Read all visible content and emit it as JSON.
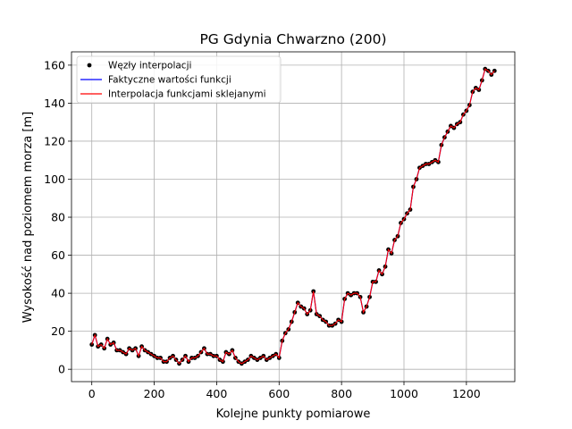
{
  "chart_data": {
    "type": "line",
    "title": "PG Gdynia Chwarzno (200)",
    "xlabel": "Kolejne punkty pomiarowe",
    "ylabel": "Wysokość nad poziomem morza [m]",
    "xlim": [
      -65,
      1355
    ],
    "ylim": [
      -6.5,
      167
    ],
    "xticks": [
      0,
      200,
      400,
      600,
      800,
      1000,
      1200
    ],
    "yticks": [
      0,
      20,
      40,
      60,
      80,
      100,
      120,
      140,
      160
    ],
    "grid": true,
    "legend_position": "top-left",
    "colors": {
      "nodes": "#000000",
      "actual": "#0000ff",
      "spline": "#ff0000",
      "grid": "#b0b0b0"
    },
    "series": [
      {
        "name": "Węzły interpolacji",
        "style": "scatter",
        "key": "nodes"
      },
      {
        "name": "Faktyczne wartości funkcji",
        "style": "line",
        "key": "actual"
      },
      {
        "name": "Interpolacja funkcjami sklejanymi",
        "style": "line",
        "key": "spline"
      }
    ],
    "x": [
      0,
      10,
      20,
      30,
      40,
      50,
      60,
      70,
      80,
      90,
      100,
      110,
      120,
      130,
      140,
      150,
      160,
      170,
      180,
      190,
      200,
      210,
      220,
      230,
      240,
      250,
      260,
      270,
      280,
      290,
      300,
      310,
      320,
      330,
      340,
      350,
      360,
      370,
      380,
      390,
      400,
      410,
      420,
      430,
      440,
      450,
      460,
      470,
      480,
      490,
      500,
      510,
      520,
      530,
      540,
      550,
      560,
      570,
      580,
      590,
      600,
      610,
      620,
      630,
      640,
      650,
      660,
      670,
      680,
      690,
      700,
      710,
      720,
      730,
      740,
      750,
      760,
      770,
      780,
      790,
      800,
      810,
      820,
      830,
      840,
      850,
      860,
      870,
      880,
      890,
      900,
      910,
      920,
      930,
      940,
      950,
      960,
      970,
      980,
      990,
      1000,
      1010,
      1020,
      1030,
      1040,
      1050,
      1060,
      1070,
      1080,
      1090,
      1100,
      1110,
      1120,
      1130,
      1140,
      1150,
      1160,
      1170,
      1180,
      1190,
      1200,
      1210,
      1220,
      1230,
      1240,
      1250,
      1260,
      1270,
      1280,
      1290
    ],
    "values": [
      13,
      18,
      12,
      13,
      11,
      16,
      13,
      14,
      10,
      10,
      9,
      8,
      11,
      10,
      11,
      7,
      12,
      10,
      9,
      8,
      7,
      6,
      6,
      4,
      4,
      6,
      7,
      5,
      3,
      5,
      7,
      4,
      6,
      6,
      7,
      9,
      11,
      8,
      8,
      7,
      7,
      5,
      4,
      9,
      8,
      10,
      6,
      4,
      3,
      4,
      5,
      7,
      6,
      5,
      6,
      7,
      5,
      6,
      7,
      8,
      6,
      15,
      19,
      21,
      25,
      30,
      35,
      33,
      32,
      29,
      31,
      41,
      29,
      28,
      26,
      25,
      23,
      23,
      24,
      26,
      25,
      37,
      40,
      39,
      40,
      40,
      38,
      30,
      33,
      38,
      46,
      46,
      52,
      50,
      54,
      63,
      61,
      68,
      70,
      77,
      79,
      82,
      84,
      96,
      100,
      106,
      107,
      108,
      108,
      109,
      110,
      109,
      118,
      122,
      125,
      128,
      127,
      129,
      130,
      134,
      136,
      139,
      146,
      148,
      147,
      152,
      158,
      157,
      155,
      157
    ]
  }
}
